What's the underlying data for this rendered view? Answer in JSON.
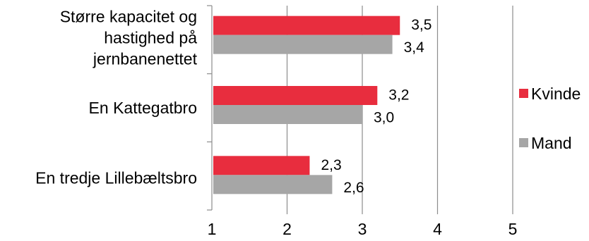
{
  "chart_data": {
    "type": "bar",
    "orientation": "horizontal",
    "categories": [
      [
        "Større kapacitet og",
        "hastighed på",
        "jernbanenettet"
      ],
      [
        "En Kattegatbro"
      ],
      [
        "En tredje Lillebæltsbro"
      ]
    ],
    "series": [
      {
        "name": "Kvinde",
        "color": "#e82d3e",
        "values": [
          3.5,
          3.2,
          2.3
        ],
        "labels": [
          "3,5",
          "3,2",
          "2,3"
        ]
      },
      {
        "name": "Mand",
        "color": "#a6a6a6",
        "values": [
          3.4,
          3.0,
          2.6
        ],
        "labels": [
          "3,4",
          "3,0",
          "2,6"
        ]
      }
    ],
    "xlim": [
      1,
      5
    ],
    "xticks": [
      1,
      2,
      3,
      4,
      5
    ],
    "xtick_labels": [
      "1",
      "2",
      "3",
      "4",
      "5"
    ],
    "grid": true,
    "legend": "right",
    "title": "",
    "xlabel": "",
    "ylabel": ""
  }
}
